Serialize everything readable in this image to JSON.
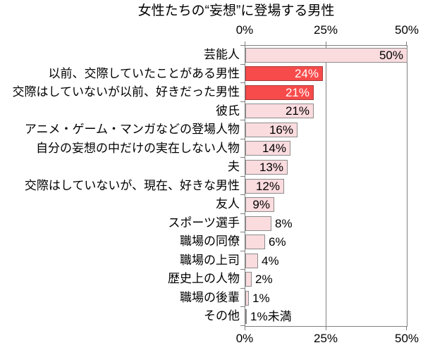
{
  "title": "女性たちの“妄想”に登場する男性",
  "chart_data": {
    "type": "bar",
    "orientation": "horizontal",
    "title": "女性たちの“妄想”に登場する男性",
    "xlabel": "",
    "ylabel": "",
    "xlim": [
      0,
      50
    ],
    "tick_labels": [
      "0%",
      "25%",
      "50%"
    ],
    "axis_shown": "top-and-bottom",
    "grid": "vertical lines at 25% and 50%",
    "legend": "none",
    "categories": [
      "芸能人",
      "以前、交際していたことがある男性",
      "交際はしていないが以前、好きだった男性",
      "彼氏",
      "アニメ・ゲーム・マンガなどの登場人物",
      "自分の妄想の中だけの実在しない人物",
      "夫",
      "交際はしていないが、現在、好きな男性",
      "友人",
      "スポーツ選手",
      "職場の同僚",
      "職場の上司",
      "歴史上の人物",
      "職場の後輩",
      "その他"
    ],
    "values": [
      50,
      24,
      21,
      21,
      16,
      14,
      13,
      12,
      9,
      8,
      6,
      4,
      2,
      1,
      0.5
    ],
    "value_labels": [
      "50%",
      "24%",
      "21%",
      "21%",
      "16%",
      "14%",
      "13%",
      "12%",
      "9%",
      "8%",
      "6%",
      "4%",
      "2%",
      "1%",
      "1%未満"
    ],
    "highlighted": [
      false,
      true,
      true,
      false,
      false,
      false,
      false,
      false,
      false,
      false,
      false,
      false,
      false,
      false,
      false
    ],
    "value_inside": [
      true,
      true,
      true,
      true,
      true,
      true,
      true,
      true,
      true,
      false,
      false,
      false,
      false,
      false,
      false
    ],
    "colors": {
      "bar": "#FADBDE",
      "bar_border": "#8C8C8C",
      "highlight": "#F74B4B",
      "highlight_border": "#A83838",
      "grid": "#808080",
      "value_on_highlight": "#FFFFFF",
      "text": "#000000"
    }
  }
}
